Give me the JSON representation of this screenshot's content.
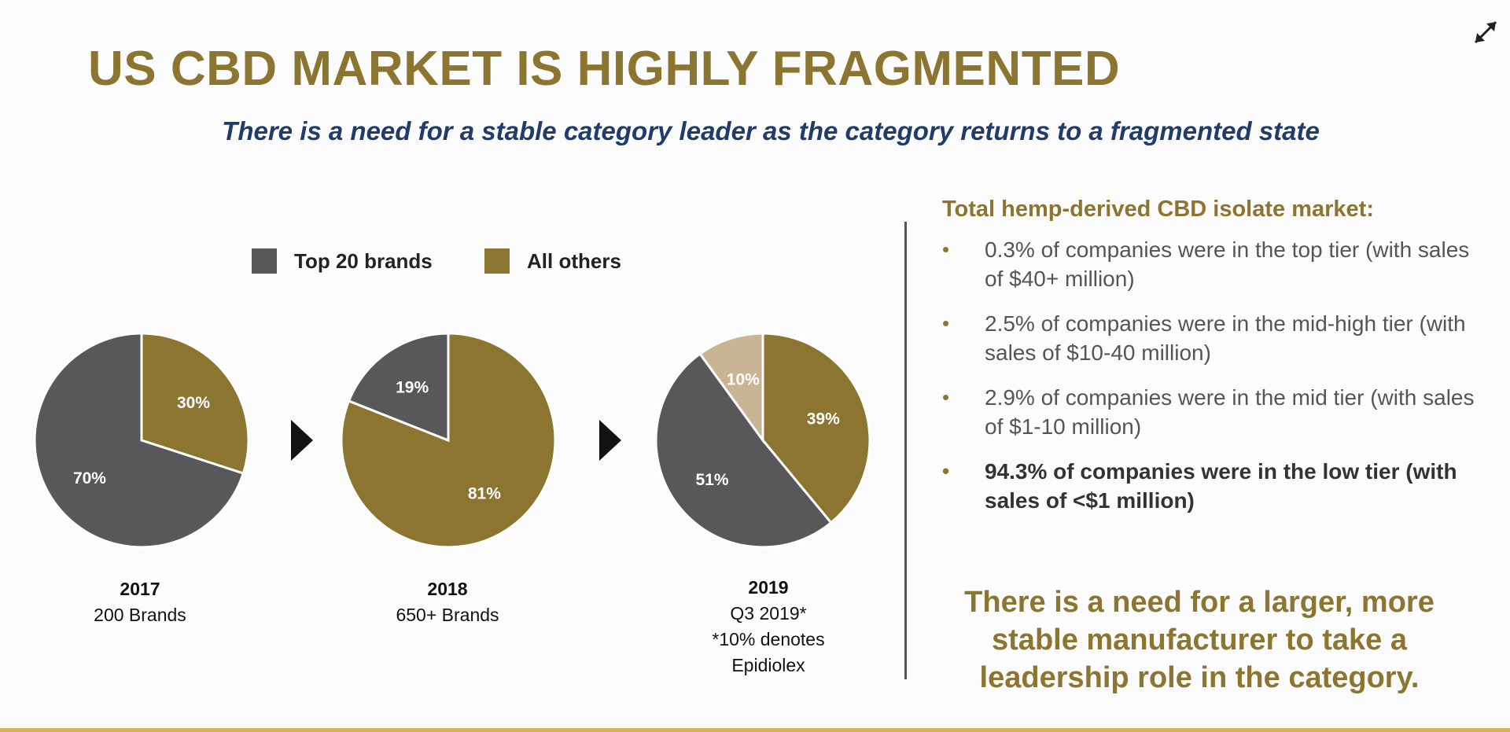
{
  "title": "US CBD MARKET IS HIGHLY FRAGMENTED",
  "subtitle": "There is a need for a stable category leader as the category returns to a fragmented state",
  "colors": {
    "title": "#8c7530",
    "subtitle": "#1f3c6b",
    "top20": "#58585a",
    "others": "#8c7530",
    "epidiolex": "#c9b594",
    "accent_rule": "#d4b25a"
  },
  "legend": [
    {
      "label": "Top 20 brands",
      "color": "#58585a"
    },
    {
      "label": "All others",
      "color": "#8c7530"
    }
  ],
  "chart_data": [
    {
      "type": "pie",
      "slices": [
        {
          "name": "All others",
          "value": 30,
          "label": "30%",
          "color": "#8c7530"
        },
        {
          "name": "Top 20 brands",
          "value": 70,
          "label": "70%",
          "color": "#58585a"
        }
      ],
      "caption_year": "2017",
      "caption_lines": [
        "200 Brands"
      ]
    },
    {
      "type": "pie",
      "slices": [
        {
          "name": "All others",
          "value": 81,
          "label": "81%",
          "color": "#8c7530"
        },
        {
          "name": "Top 20 brands",
          "value": 19,
          "label": "19%",
          "color": "#58585a"
        }
      ],
      "caption_year": "2018",
      "caption_lines": [
        "650+ Brands"
      ]
    },
    {
      "type": "pie",
      "slices": [
        {
          "name": "All others",
          "value": 39,
          "label": "39%",
          "color": "#8c7530"
        },
        {
          "name": "Top 20 brands",
          "value": 51,
          "label": "51%",
          "color": "#58585a"
        },
        {
          "name": "Epidiolex",
          "value": 10,
          "label": "10%",
          "color": "#c9b594"
        }
      ],
      "caption_year": "2019",
      "caption_lines": [
        "Q3 2019*",
        "*10% denotes",
        "Epidiolex"
      ]
    }
  ],
  "right_panel": {
    "title": "Total hemp-derived CBD isolate market:",
    "bullet_symbol": "•",
    "bullets": [
      {
        "text": "0.3% of companies were in the top tier (with sales of $40+ million)",
        "bold": false
      },
      {
        "text": "2.5% of companies were in the mid-high tier (with sales of $10-40 million)",
        "bold": false
      },
      {
        "text": "2.9% of companies were in the mid tier (with sales of $1-10 million)",
        "bold": false
      },
      {
        "text": "94.3% of companies were in the low tier (with sales of <$1 million)",
        "bold": true
      }
    ],
    "conclusion": "There is a need for a larger, more stable manufacturer to take a leadership role in the category."
  },
  "icons": {
    "expand": "expand-icon",
    "arrow": "play-arrow-icon"
  }
}
